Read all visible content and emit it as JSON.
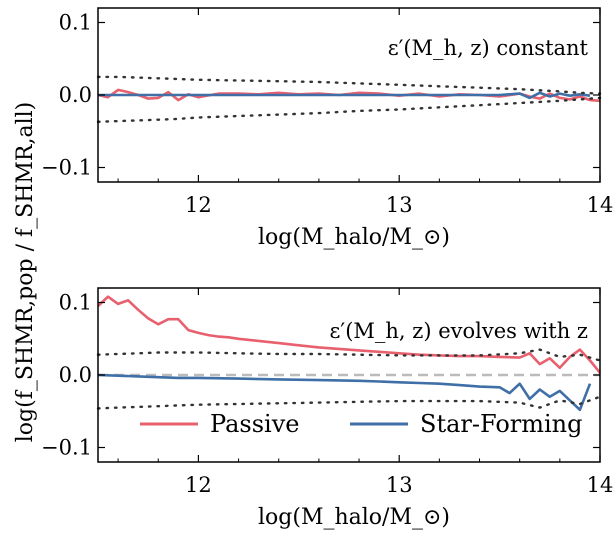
{
  "chart_data": [
    {
      "type": "line",
      "annotation": "ε′(M_h, z) constant",
      "xlabel": "log(M_halo/M_⊙)",
      "ylabel": "log(f_SHMR,pop / f_SHMR,all)",
      "xlim": [
        11.5,
        14.0
      ],
      "ylim": [
        -0.12,
        0.12
      ],
      "xticks": [
        12,
        13,
        14
      ],
      "yticks": [
        -0.1,
        0.0,
        0.1
      ],
      "xtick_labels": [
        "12",
        "13",
        "14"
      ],
      "ytick_labels": [
        "−0.1",
        "0.0",
        "0.1"
      ],
      "grid": false,
      "series": [
        {
          "name": "Passive",
          "color": "#e8606e",
          "x": [
            11.5,
            11.55,
            11.6,
            11.65,
            11.7,
            11.75,
            11.8,
            11.85,
            11.9,
            11.95,
            12.0,
            12.1,
            12.2,
            12.3,
            12.4,
            12.5,
            12.6,
            12.7,
            12.8,
            12.9,
            13.0,
            13.1,
            13.2,
            13.3,
            13.4,
            13.5,
            13.6,
            13.65,
            13.7,
            13.75,
            13.8,
            13.85,
            13.9,
            13.95,
            14.0
          ],
          "y": [
            0.0,
            -0.003,
            0.007,
            0.004,
            0.0,
            -0.005,
            -0.004,
            0.004,
            -0.007,
            0.001,
            -0.003,
            0.002,
            0.002,
            0.001,
            0.003,
            0.001,
            0.002,
            0.0,
            0.003,
            0.002,
            -0.001,
            0.002,
            -0.002,
            0.001,
            0.0,
            -0.002,
            0.002,
            -0.002,
            -0.005,
            0.002,
            -0.004,
            -0.006,
            -0.002,
            -0.007,
            -0.008
          ]
        },
        {
          "name": "Star-Forming",
          "color": "#3f6fa6",
          "x": [
            11.5,
            11.6,
            11.7,
            11.8,
            11.9,
            12.0,
            12.2,
            12.4,
            12.6,
            12.8,
            13.0,
            13.2,
            13.4,
            13.5,
            13.6,
            13.65,
            13.7,
            13.75,
            13.8,
            13.85,
            13.9,
            13.95
          ],
          "y": [
            0.0,
            0.0,
            0.0,
            0.0,
            0.0,
            0.0,
            0.0,
            0.0,
            0.0,
            0.0,
            0.0,
            0.0,
            0.0,
            0.0,
            0.002,
            -0.004,
            0.003,
            -0.002,
            0.002,
            -0.001,
            0.001,
            -0.001
          ]
        },
        {
          "name": "upper-scatter",
          "color": "#333333",
          "style": "dotted",
          "x": [
            11.5,
            11.6,
            11.7,
            11.8,
            11.9,
            12.0,
            12.2,
            12.4,
            12.6,
            12.8,
            13.0,
            13.2,
            13.4,
            13.6,
            13.8,
            13.9,
            14.0
          ],
          "y": [
            0.025,
            0.025,
            0.024,
            0.023,
            0.022,
            0.021,
            0.02,
            0.019,
            0.018,
            0.016,
            0.014,
            0.012,
            0.01,
            0.008,
            0.005,
            0.003,
            0.002
          ]
        },
        {
          "name": "lower-scatter",
          "color": "#333333",
          "style": "dotted",
          "x": [
            11.5,
            11.6,
            11.7,
            11.8,
            11.9,
            12.0,
            12.2,
            12.4,
            12.6,
            12.8,
            13.0,
            13.2,
            13.4,
            13.6,
            13.8,
            13.9,
            14.0
          ],
          "y": [
            -0.037,
            -0.036,
            -0.035,
            -0.034,
            -0.033,
            -0.031,
            -0.029,
            -0.027,
            -0.025,
            -0.022,
            -0.02,
            -0.017,
            -0.014,
            -0.011,
            -0.008,
            -0.006,
            -0.004
          ]
        }
      ]
    },
    {
      "type": "line",
      "annotation": "ε′(M_h, z) evolves with z",
      "xlabel": "log(M_halo/M_⊙)",
      "xlim": [
        11.5,
        14.0
      ],
      "ylim": [
        -0.12,
        0.12
      ],
      "xticks": [
        12,
        13,
        14
      ],
      "yticks": [
        -0.1,
        0.0,
        0.1
      ],
      "xtick_labels": [
        "12",
        "13",
        "14"
      ],
      "ytick_labels": [
        "−0.1",
        "0.0",
        "0.1"
      ],
      "grid": false,
      "legend_position": "bottom-center",
      "legend": [
        "Passive",
        "Star-Forming"
      ],
      "zero_line": {
        "y": 0.0,
        "color": "#bbbbbb",
        "style": "dashed"
      },
      "series": [
        {
          "name": "Passive",
          "color": "#e8606e",
          "x": [
            11.5,
            11.55,
            11.6,
            11.65,
            11.7,
            11.75,
            11.8,
            11.85,
            11.9,
            11.95,
            12.0,
            12.05,
            12.1,
            12.15,
            12.2,
            12.3,
            12.4,
            12.5,
            12.6,
            12.7,
            12.8,
            12.9,
            13.0,
            13.1,
            13.2,
            13.3,
            13.4,
            13.5,
            13.6,
            13.65,
            13.7,
            13.75,
            13.8,
            13.85,
            13.9,
            13.95,
            14.0
          ],
          "y": [
            0.095,
            0.108,
            0.098,
            0.103,
            0.09,
            0.078,
            0.07,
            0.077,
            0.077,
            0.062,
            0.058,
            0.055,
            0.053,
            0.052,
            0.05,
            0.047,
            0.044,
            0.041,
            0.038,
            0.036,
            0.034,
            0.032,
            0.03,
            0.028,
            0.027,
            0.026,
            0.026,
            0.025,
            0.024,
            0.03,
            0.015,
            0.023,
            0.01,
            0.025,
            0.035,
            0.02,
            0.003
          ]
        },
        {
          "name": "Star-Forming",
          "color": "#3f6fa6",
          "x": [
            11.5,
            11.6,
            11.7,
            11.8,
            11.9,
            12.0,
            12.2,
            12.4,
            12.6,
            12.8,
            12.9,
            13.0,
            13.1,
            13.2,
            13.3,
            13.4,
            13.5,
            13.55,
            13.6,
            13.65,
            13.7,
            13.75,
            13.8,
            13.85,
            13.9,
            13.95
          ],
          "y": [
            0.0,
            -0.001,
            -0.002,
            -0.003,
            -0.004,
            -0.004,
            -0.005,
            -0.006,
            -0.007,
            -0.008,
            -0.009,
            -0.01,
            -0.011,
            -0.012,
            -0.014,
            -0.016,
            -0.017,
            -0.025,
            -0.012,
            -0.033,
            -0.02,
            -0.03,
            -0.022,
            -0.035,
            -0.048,
            -0.012
          ]
        },
        {
          "name": "upper-scatter",
          "color": "#333333",
          "style": "dotted",
          "x": [
            11.5,
            11.6,
            11.7,
            11.8,
            11.9,
            12.0,
            12.2,
            12.4,
            12.6,
            12.8,
            13.0,
            13.2,
            13.4,
            13.6,
            13.7,
            13.8,
            13.9,
            14.0
          ],
          "y": [
            0.028,
            0.029,
            0.03,
            0.031,
            0.031,
            0.031,
            0.03,
            0.029,
            0.029,
            0.028,
            0.027,
            0.027,
            0.027,
            0.03,
            0.035,
            0.025,
            0.028,
            0.02
          ]
        },
        {
          "name": "lower-scatter",
          "color": "#333333",
          "style": "dotted",
          "x": [
            11.5,
            11.6,
            11.7,
            11.8,
            11.9,
            12.0,
            12.2,
            12.4,
            12.6,
            12.8,
            13.0,
            13.2,
            13.4,
            13.6,
            13.7,
            13.8,
            13.9,
            14.0
          ],
          "y": [
            -0.046,
            -0.045,
            -0.044,
            -0.043,
            -0.042,
            -0.041,
            -0.04,
            -0.039,
            -0.038,
            -0.037,
            -0.036,
            -0.036,
            -0.036,
            -0.038,
            -0.045,
            -0.035,
            -0.04,
            -0.03
          ]
        }
      ]
    }
  ]
}
